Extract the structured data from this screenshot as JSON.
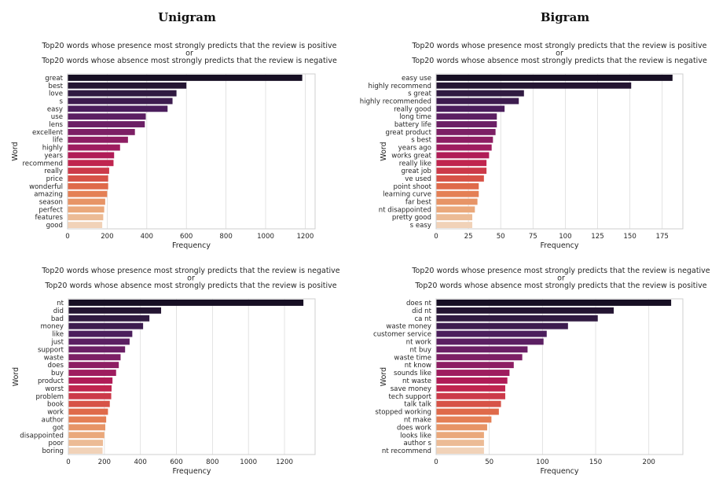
{
  "headers": {
    "left": "Unigram",
    "right": "Bigram"
  },
  "chart_data": [
    {
      "type": "bar",
      "orientation": "horizontal",
      "title_lines": [
        "Top20 words whose presence most strongly predicts that the review is positive",
        "or",
        "Top20 words whose absence most strongly predicts that the review is negative"
      ],
      "xlabel": "Frequency",
      "ylabel": "Word",
      "xlim": [
        0,
        1250
      ],
      "xticks": [
        0,
        200,
        400,
        600,
        800,
        1000,
        1200
      ],
      "grid": "x",
      "categories": [
        "great",
        "best",
        "love",
        "s",
        "easy",
        "use",
        "lens",
        "excellent",
        "life",
        "highly",
        "years",
        "recommend",
        "really",
        "price",
        "wonderful",
        "amazing",
        "season",
        "perfect",
        "features",
        "good"
      ],
      "values": [
        1185,
        600,
        550,
        530,
        505,
        395,
        390,
        340,
        305,
        265,
        235,
        232,
        210,
        205,
        205,
        200,
        190,
        185,
        180,
        175
      ]
    },
    {
      "type": "bar",
      "orientation": "horizontal",
      "title_lines": [
        "Top20 words whose presence most strongly predicts that the review is positive",
        "or",
        "Top20 words whose absence most strongly predicts that the review is negative"
      ],
      "xlabel": "Frequency",
      "ylabel": "Word",
      "xlim": [
        0,
        191
      ],
      "xticks": [
        0,
        25,
        50,
        75,
        100,
        125,
        150,
        175
      ],
      "grid": "x",
      "categories": [
        "easy use",
        "highly recommend",
        "s great",
        "highly recommended",
        "really good",
        "long time",
        "battery life",
        "great product",
        "s best",
        "years ago",
        "works great",
        "really like",
        "great job",
        "ve used",
        "point shoot",
        "learning curve",
        "far best",
        "nt disappointed",
        "pretty good",
        "s easy"
      ],
      "values": [
        183,
        151,
        68,
        64,
        53,
        47,
        47,
        46,
        44,
        43,
        41,
        39,
        39,
        37,
        33,
        33,
        32,
        30,
        28,
        28
      ]
    },
    {
      "type": "bar",
      "orientation": "horizontal",
      "title_lines": [
        "Top20 words whose presence most strongly predicts that the review is negative",
        "or",
        "Top20 words whose absence most strongly predicts that the review is positive"
      ],
      "xlabel": "Frequency",
      "ylabel": "Word",
      "xlim": [
        0,
        1370
      ],
      "xticks": [
        0,
        200,
        400,
        600,
        800,
        1000,
        1200
      ],
      "grid": "x",
      "categories": [
        "nt",
        "did",
        "bad",
        "money",
        "like",
        "just",
        "support",
        "waste",
        "does",
        "buy",
        "product",
        "worst",
        "problem",
        "book",
        "work",
        "author",
        "got",
        "disappointed",
        "poor",
        "boring"
      ],
      "values": [
        1305,
        515,
        450,
        415,
        355,
        340,
        315,
        290,
        280,
        265,
        245,
        240,
        238,
        230,
        220,
        210,
        205,
        200,
        192,
        190
      ]
    },
    {
      "type": "bar",
      "orientation": "horizontal",
      "title_lines": [
        "Top20 words whose presence most strongly predicts that the review is negative",
        "or",
        "Top20 words whose absence most strongly predicts that the review is positive"
      ],
      "xlabel": "Frequency",
      "ylabel": "Word",
      "xlim": [
        0,
        232
      ],
      "xticks": [
        0,
        50,
        100,
        150,
        200
      ],
      "grid": "x",
      "categories": [
        "does nt",
        "did nt",
        "ca nt",
        "waste money",
        "customer service",
        "nt work",
        "nt buy",
        "waste time",
        "nt know",
        "sounds like",
        "nt waste",
        "save money",
        "tech support",
        "talk talk",
        "stopped working",
        "nt make",
        "does work",
        "looks like",
        "author s",
        "nt recommend"
      ],
      "values": [
        221,
        167,
        152,
        124,
        104,
        101,
        86,
        81,
        73,
        69,
        67,
        65,
        65,
        61,
        59,
        52,
        48,
        45,
        45,
        45
      ]
    }
  ],
  "palette": [
    "#170f24",
    "#241532",
    "#301a41",
    "#3d1c4f",
    "#4b1e5c",
    "#5b1f62",
    "#6b1f65",
    "#7c1f65",
    "#8d1e63",
    "#9e1c5f",
    "#b01c57",
    "#c0254f",
    "#cc3a4a",
    "#d75247",
    "#df6a4a",
    "#e47f55",
    "#e79466",
    "#eaa87b",
    "#ecbb95",
    "#f1d2b8"
  ]
}
